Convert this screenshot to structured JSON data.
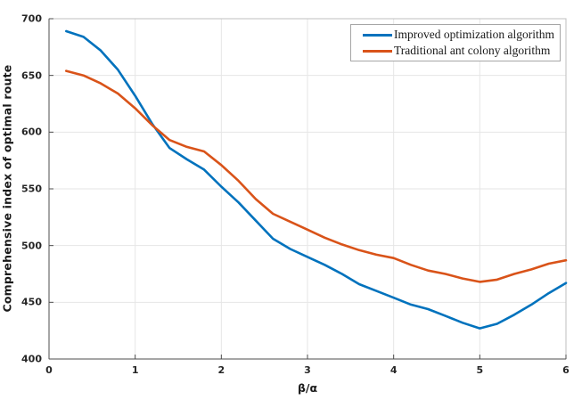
{
  "chart_data": {
    "type": "line",
    "title": "",
    "xlabel": "β/α",
    "ylabel": "Comprehensive index of optimal route",
    "xlim": [
      0,
      6
    ],
    "ylim": [
      400,
      700
    ],
    "xticks": [
      0,
      1,
      2,
      3,
      4,
      5,
      6
    ],
    "yticks": [
      400,
      450,
      500,
      550,
      600,
      650,
      700
    ],
    "grid": true,
    "legend_position": "top-right",
    "x": [
      0.2,
      0.4,
      0.6,
      0.8,
      1.0,
      1.2,
      1.4,
      1.6,
      1.8,
      2.0,
      2.2,
      2.4,
      2.6,
      2.8,
      3.0,
      3.2,
      3.4,
      3.6,
      3.8,
      4.0,
      4.2,
      4.4,
      4.6,
      4.8,
      5.0,
      5.2,
      5.4,
      5.6,
      5.8,
      6.0
    ],
    "series": [
      {
        "name": "Improved optimization algorithm",
        "color": "#0072BD",
        "values": [
          689,
          684,
          672,
          655,
          632,
          607,
          586,
          576,
          567,
          552,
          538,
          522,
          506,
          497,
          490,
          483,
          475,
          466,
          460,
          454,
          448,
          444,
          438,
          432,
          427,
          431,
          439,
          448,
          458,
          467
        ]
      },
      {
        "name": "Traditional ant colony algorithm",
        "color": "#D95319",
        "values": [
          654,
          650,
          643,
          634,
          621,
          606,
          593,
          587,
          583,
          571,
          557,
          541,
          528,
          521,
          514,
          507,
          501,
          496,
          492,
          489,
          483,
          478,
          475,
          471,
          468,
          470,
          475,
          479,
          484,
          487
        ]
      }
    ]
  },
  "style": {
    "grid_color": "#e6e6e6",
    "box_color": "#bfbfbf",
    "spine_color": "#4d4d4d",
    "tick_color": "#4d4d4d",
    "background": "#ffffff",
    "line_width": 2.6
  }
}
